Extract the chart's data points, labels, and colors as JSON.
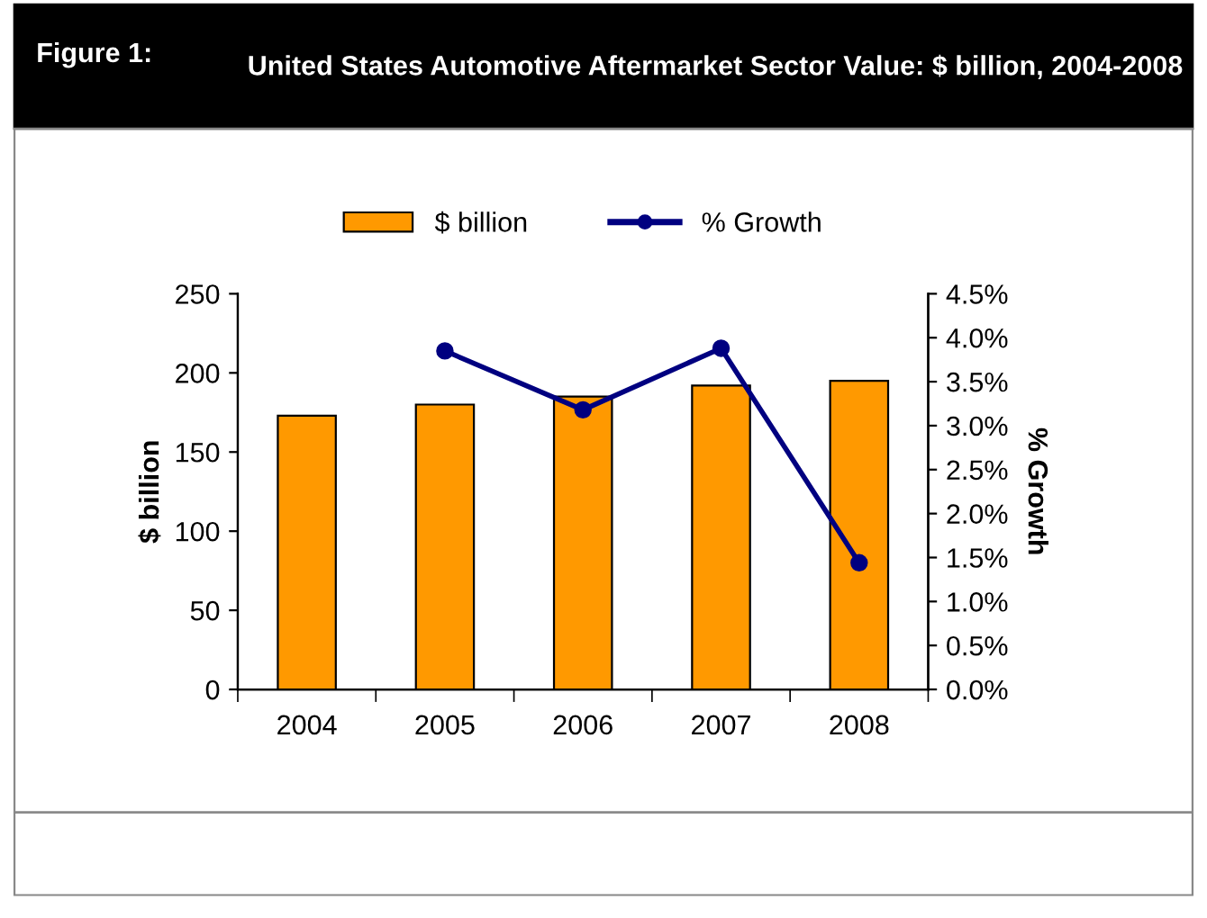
{
  "chart_data": {
    "type": "bar",
    "title": "Figure 1:",
    "subtitle": "United States Automotive Aftermarket Sector Value: $ billion, 2004-2008",
    "categories": [
      "2004",
      "2005",
      "2006",
      "2007",
      "2008"
    ],
    "series": [
      {
        "name": "$ billion",
        "color": "#ff9900",
        "values": [
          173,
          180,
          185,
          192,
          195
        ]
      },
      {
        "name": "% Growth",
        "type": "line",
        "axis": "y2",
        "color": "#000080",
        "marker": "circle",
        "values": [
          null,
          3.85,
          3.18,
          3.88,
          1.44
        ]
      }
    ],
    "ylabel": "$ billion",
    "y2label": "% Growth",
    "ylim": [
      0,
      250
    ],
    "yticks": [
      0,
      50,
      100,
      150,
      200,
      250
    ],
    "y2lim": [
      0,
      4.5
    ],
    "y2ticks": [
      {
        "value": 0,
        "label": "0.0%"
      },
      {
        "value": 0.5,
        "label": "0.5%"
      },
      {
        "value": 1,
        "label": "1.0%"
      },
      {
        "value": 1.5,
        "label": "1.5%"
      },
      {
        "value": 2,
        "label": "2.0%"
      },
      {
        "value": 2.5,
        "label": "2.5%"
      },
      {
        "value": 3,
        "label": "3.0%"
      },
      {
        "value": 3.5,
        "label": "3.5%"
      },
      {
        "value": 4,
        "label": "4.0%"
      },
      {
        "value": 4.5,
        "label": "4.5%"
      }
    ],
    "legend": "top",
    "grid": false
  }
}
